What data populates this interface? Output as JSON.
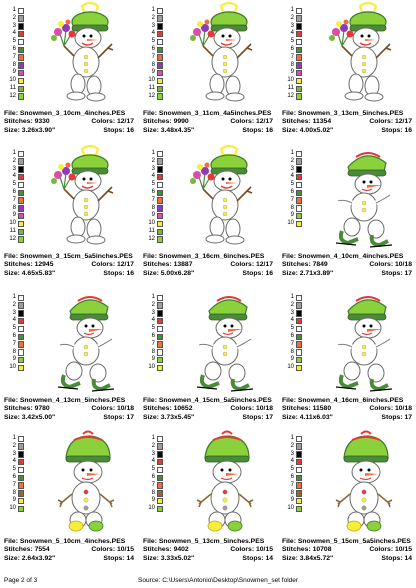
{
  "footer": {
    "page": "Page 2 of 3",
    "source": "Source: C:\\Users\\Antonio\\Desktop\\Snowmen_set folder"
  },
  "labels": {
    "file": "File:",
    "stitches": "Stitches:",
    "colors": "Colors:",
    "size": "Size:",
    "stops": "Stops:"
  },
  "palette_colors": {
    "A": [
      "#ffffff",
      "#9e9e9e",
      "#000000",
      "#e53935",
      "#ffffff",
      "#4a8b3a",
      "#f26b3a",
      "#8e3bb5",
      "#d94fa8",
      "#f6ef3a",
      "#7ab83c",
      "#8bd13c"
    ],
    "B": [
      "#ffffff",
      "#9e9e9e",
      "#000000",
      "#e53935",
      "#ffffff",
      "#4a8b3a",
      "#f26b3a",
      "#ffffff",
      "#8bd13c",
      "#f6ef3a"
    ],
    "C": [
      "#ffffff",
      "#9e9e9e",
      "#000000",
      "#e53935",
      "#ffffff",
      "#4a8b3a",
      "#f26b3a",
      "#8b6a3a",
      "#f6ef3a",
      "#8bd13c"
    ]
  },
  "designs": [
    {
      "file": "Snowmen_3_10cm_4inches.PES",
      "stitches": "9330",
      "colors": "12/17",
      "size": "3.26x3.90\"",
      "stops": "16",
      "type": "flowers",
      "palette": "A"
    },
    {
      "file": "Snowmen_3_11cm_4a5inches.PES",
      "stitches": "9990",
      "colors": "12/17",
      "size": "3.48x4.35\"",
      "stops": "16",
      "type": "flowers",
      "palette": "A"
    },
    {
      "file": "Snowmen_3_13cm_5inches.PES",
      "stitches": "11354",
      "colors": "12/17",
      "size": "4.00x5.02\"",
      "stops": "16",
      "type": "flowers",
      "palette": "A"
    },
    {
      "file": "Snowmen_3_15cm_5a5inches.PES",
      "stitches": "12945",
      "colors": "12/17",
      "size": "4.65x5.83\"",
      "stops": "16",
      "type": "flowers",
      "palette": "A"
    },
    {
      "file": "Snowmen_3_16cm_6inches.PES",
      "stitches": "13887",
      "colors": "12/17",
      "size": "5.00x6.28\"",
      "stops": "16",
      "type": "flowers",
      "palette": "A"
    },
    {
      "file": "Snowmen_4_10cm_4inches.PES",
      "stitches": "7849",
      "colors": "10/18",
      "size": "2.71x3.89\"",
      "stops": "17",
      "type": "skater",
      "palette": "B"
    },
    {
      "file": "Snowmen_4_13cm_5inches.PES",
      "stitches": "9780",
      "colors": "10/18",
      "size": "3.42x5.00\"",
      "stops": "17",
      "type": "skater",
      "palette": "B"
    },
    {
      "file": "Snowmen_4_15cm_5a5inches.PES",
      "stitches": "10652",
      "colors": "10/18",
      "size": "3.73x5.45\"",
      "stops": "17",
      "type": "skater",
      "palette": "B"
    },
    {
      "file": "Snowmen_4_16cm_6inches.PES",
      "stitches": "11580",
      "colors": "10/18",
      "size": "4.11x6.03\"",
      "stops": "17",
      "type": "skater",
      "palette": "B"
    },
    {
      "file": "Snowmen_5_10cm_4inches.PES",
      "stitches": "7554",
      "colors": "10/15",
      "size": "2.64x3.92\"",
      "stops": "14",
      "type": "bald",
      "palette": "C"
    },
    {
      "file": "Snowmen_5_13cm_5inches.PES",
      "stitches": "9402",
      "colors": "10/15",
      "size": "3.33x5.02\"",
      "stops": "14",
      "type": "bald",
      "palette": "C"
    },
    {
      "file": "Snowmen_5_15cm_5a5inches.PES",
      "stitches": "10708",
      "colors": "10/15",
      "size": "3.84x5.72\"",
      "stops": "14",
      "type": "bald",
      "palette": "C"
    }
  ]
}
